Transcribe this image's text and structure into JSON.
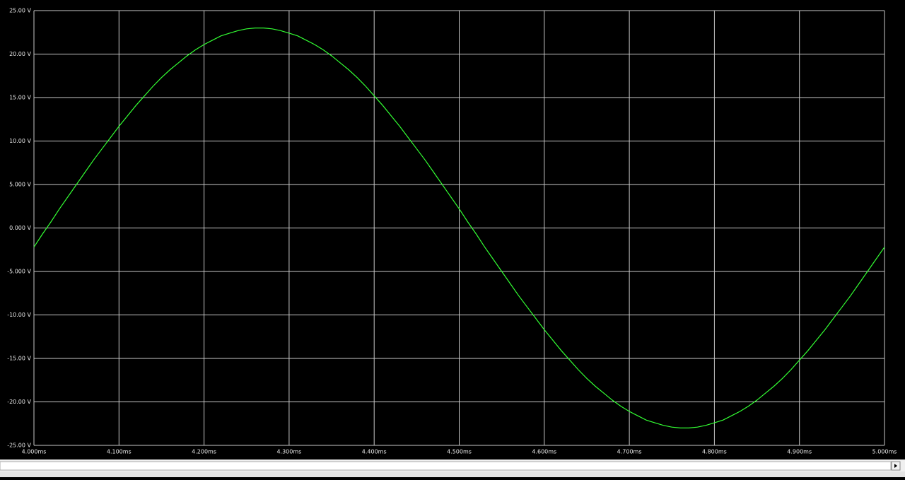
{
  "chart_data": {
    "type": "line",
    "x": [
      4.0,
      4.01,
      4.02,
      4.03,
      4.04,
      4.05,
      4.06,
      4.07,
      4.08,
      4.09,
      4.1,
      4.11,
      4.12,
      4.13,
      4.14,
      4.15,
      4.16,
      4.17,
      4.18,
      4.19,
      4.2,
      4.21,
      4.22,
      4.23,
      4.24,
      4.25,
      4.26,
      4.27,
      4.28,
      4.29,
      4.3,
      4.31,
      4.32,
      4.33,
      4.34,
      4.35,
      4.36,
      4.37,
      4.38,
      4.39,
      4.4,
      4.41,
      4.42,
      4.43,
      4.44,
      4.45,
      4.46,
      4.47,
      4.48,
      4.49,
      4.5,
      4.51,
      4.52,
      4.53,
      4.54,
      4.55,
      4.56,
      4.57,
      4.58,
      4.59,
      4.6,
      4.61,
      4.62,
      4.63,
      4.64,
      4.65,
      4.66,
      4.67,
      4.68,
      4.69,
      4.7,
      4.71,
      4.72,
      4.73,
      4.74,
      4.75,
      4.76,
      4.77,
      4.78,
      4.79,
      4.8,
      4.81,
      4.82,
      4.83,
      4.84,
      4.85,
      4.86,
      4.87,
      4.88,
      4.89,
      4.9,
      4.91,
      4.92,
      4.93,
      4.94,
      4.95,
      4.96,
      4.97,
      4.98,
      4.99,
      5.0
    ],
    "values": [
      -2.2,
      -0.7,
      0.7,
      2.2,
      3.6,
      5.0,
      6.4,
      7.8,
      9.1,
      10.4,
      11.7,
      12.9,
      14.1,
      15.2,
      16.3,
      17.3,
      18.2,
      19.0,
      19.8,
      20.5,
      21.1,
      21.6,
      22.1,
      22.4,
      22.7,
      22.9,
      23.0,
      23.0,
      22.9,
      22.7,
      22.4,
      22.1,
      21.6,
      21.1,
      20.5,
      19.8,
      19.0,
      18.2,
      17.3,
      16.3,
      15.2,
      14.1,
      12.9,
      11.7,
      10.4,
      9.1,
      7.8,
      6.4,
      5.0,
      3.6,
      2.2,
      0.7,
      -0.7,
      -2.2,
      -3.6,
      -5.0,
      -6.4,
      -7.8,
      -9.1,
      -10.4,
      -11.7,
      -12.9,
      -14.1,
      -15.2,
      -16.3,
      -17.3,
      -18.2,
      -19.0,
      -19.8,
      -20.5,
      -21.1,
      -21.6,
      -22.1,
      -22.4,
      -22.7,
      -22.9,
      -23.0,
      -23.0,
      -22.9,
      -22.7,
      -22.4,
      -22.1,
      -21.6,
      -21.1,
      -20.5,
      -19.8,
      -19.0,
      -18.2,
      -17.3,
      -16.3,
      -15.2,
      -14.1,
      -12.9,
      -11.7,
      -10.4,
      -9.1,
      -7.8,
      -6.4,
      -5.0,
      -3.6,
      -2.2
    ],
    "color": "#33ff33",
    "xlim": [
      4.0,
      5.0
    ],
    "xticks": [
      {
        "value": 4.0,
        "label": "4.000ms"
      },
      {
        "value": 4.1,
        "label": "4.100ms"
      },
      {
        "value": 4.2,
        "label": "4.200ms"
      },
      {
        "value": 4.3,
        "label": "4.300ms"
      },
      {
        "value": 4.4,
        "label": "4.400ms"
      },
      {
        "value": 4.5,
        "label": "4.500ms"
      },
      {
        "value": 4.6,
        "label": "4.600ms"
      },
      {
        "value": 4.7,
        "label": "4.700ms"
      },
      {
        "value": 4.8,
        "label": "4.800ms"
      },
      {
        "value": 4.9,
        "label": "4.900ms"
      },
      {
        "value": 5.0,
        "label": "5.000ms"
      }
    ],
    "ylim": [
      -25,
      25
    ],
    "yticks": [
      {
        "value": 25,
        "label": "25.00 V"
      },
      {
        "value": 20,
        "label": "20.00 V"
      },
      {
        "value": 15,
        "label": "15.00 V"
      },
      {
        "value": 10,
        "label": "10.00 V"
      },
      {
        "value": 5,
        "label": "5.000 V"
      },
      {
        "value": 0,
        "label": "0.000 V"
      },
      {
        "value": -5,
        "label": "-5.000 V"
      },
      {
        "value": -10,
        "label": "-10.00 V"
      },
      {
        "value": -15,
        "label": "-15.00 V"
      },
      {
        "value": -20,
        "label": "-20.00 V"
      },
      {
        "value": -25,
        "label": "-25.00 V"
      }
    ],
    "grid": true
  }
}
